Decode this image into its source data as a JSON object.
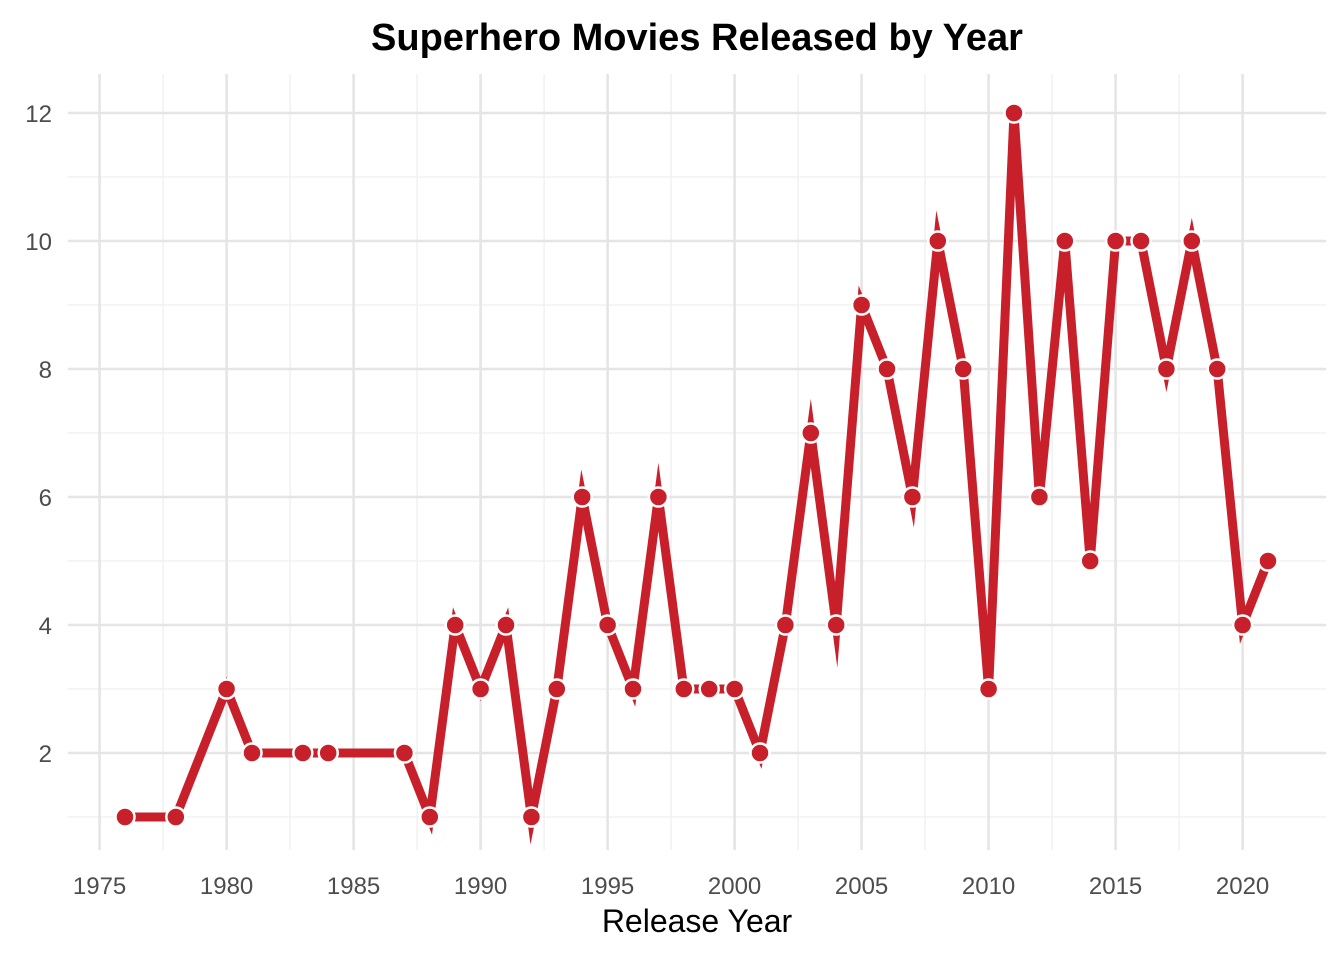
{
  "chart_data": {
    "type": "line",
    "title": "Superhero Movies Released by Year",
    "xlabel": "Release Year",
    "ylabel": "",
    "xlim": [
      1975,
      2022
    ],
    "ylim": [
      1,
      12
    ],
    "x_ticks": [
      1975,
      1980,
      1985,
      1990,
      1995,
      2000,
      2005,
      2010,
      2015,
      2020
    ],
    "y_ticks": [
      2,
      4,
      6,
      8,
      10,
      12
    ],
    "grid": true,
    "legend": "none",
    "line_color": "#c8202a",
    "point_outline": "#ffffff",
    "series": [
      {
        "x": [
          1976,
          1978,
          1980,
          1981,
          1983,
          1984,
          1987,
          1988,
          1989,
          1990,
          1991,
          1992,
          1993,
          1994,
          1995,
          1996,
          1997,
          1998,
          1999,
          2000,
          2001,
          2002,
          2003,
          2004,
          2005,
          2006,
          2007,
          2008,
          2009,
          2010,
          2011,
          2012,
          2013,
          2014,
          2015,
          2016,
          2017,
          2018,
          2019,
          2020,
          2021
        ],
        "y": [
          1,
          1,
          3,
          2,
          2,
          2,
          2,
          1,
          4,
          3,
          4,
          1,
          3,
          6,
          4,
          3,
          6,
          3,
          3,
          3,
          2,
          4,
          7,
          4,
          9,
          8,
          6,
          10,
          8,
          3,
          12,
          6,
          10,
          5,
          10,
          10,
          8,
          10,
          8,
          4,
          5
        ]
      }
    ]
  }
}
